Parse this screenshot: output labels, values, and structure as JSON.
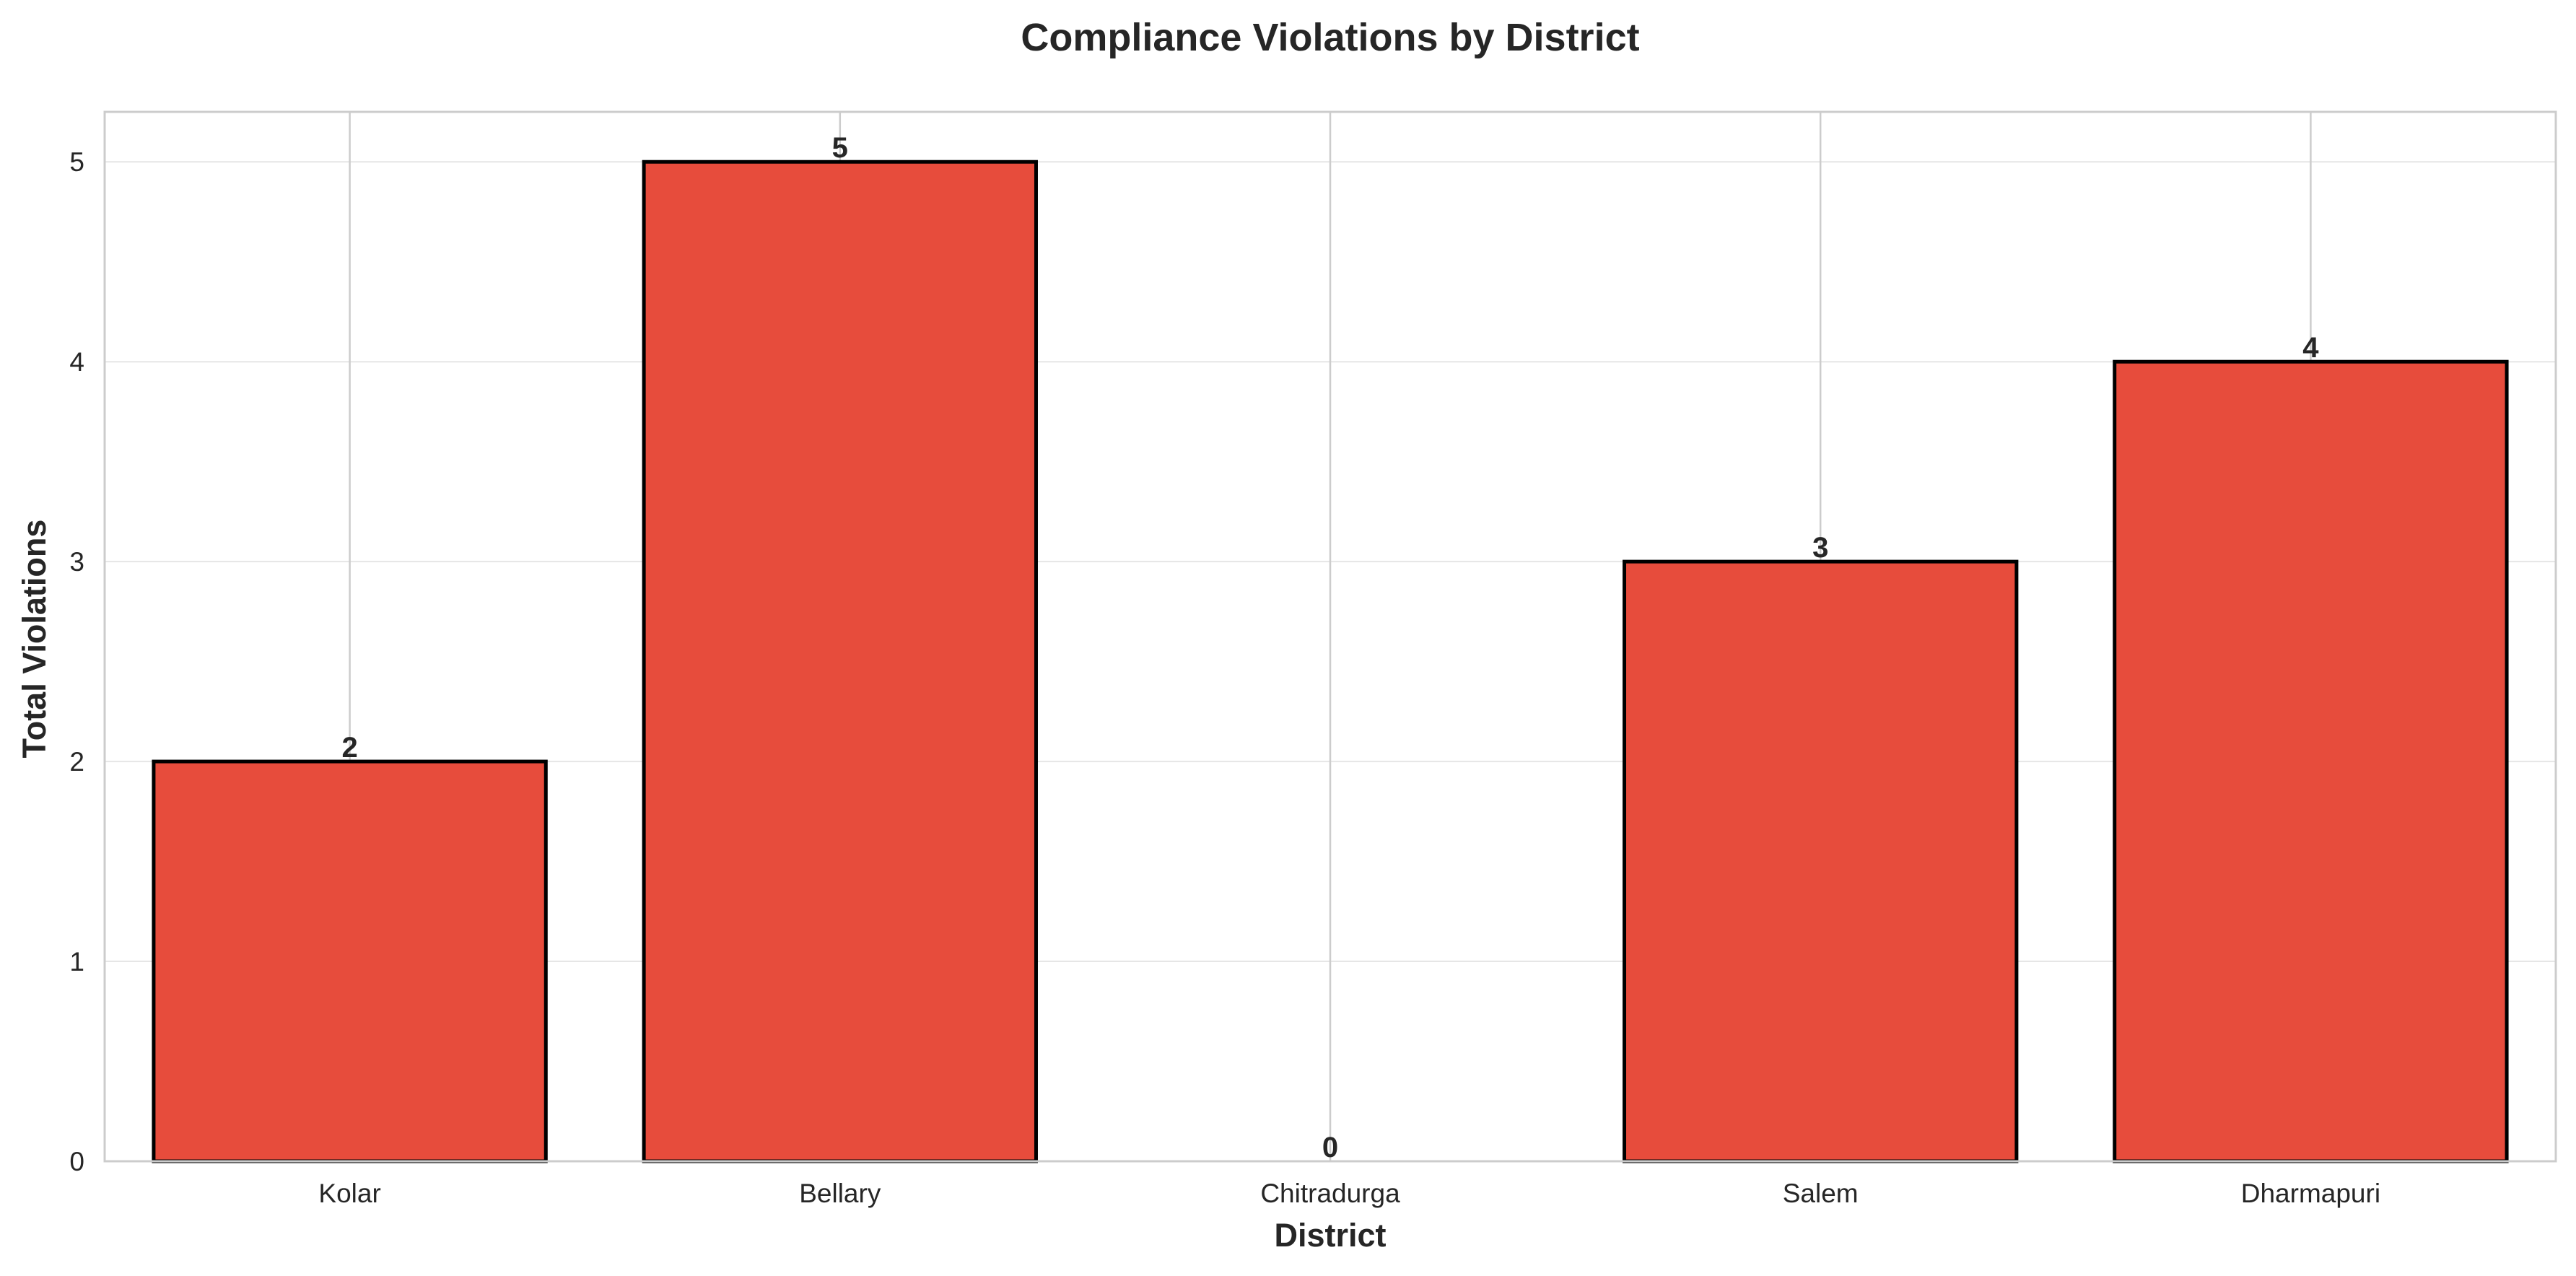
{
  "chart_data": {
    "type": "bar",
    "title": "Compliance Violations by District",
    "xlabel": "District",
    "ylabel": "Total Violations",
    "categories": [
      "Kolar",
      "Bellary",
      "Chitradurga",
      "Salem",
      "Dharmapuri"
    ],
    "values": [
      2,
      5,
      0,
      3,
      4
    ],
    "data_labels": [
      "2",
      "5",
      "0",
      "3",
      "4"
    ],
    "ylim": [
      0,
      5.25
    ],
    "yticks": [
      0,
      1,
      2,
      3,
      4,
      5
    ],
    "ytick_labels": [
      "0",
      "1",
      "2",
      "3",
      "4",
      "5"
    ],
    "grid": true,
    "legend": "none",
    "colors": {
      "bar_fill": "#e74c3c",
      "bar_edge": "#000000",
      "grid": "#e6e6e6",
      "category_gridline": "#cccccc",
      "frame": "#cccccc",
      "text": "#262626",
      "background": "#ffffff"
    }
  }
}
